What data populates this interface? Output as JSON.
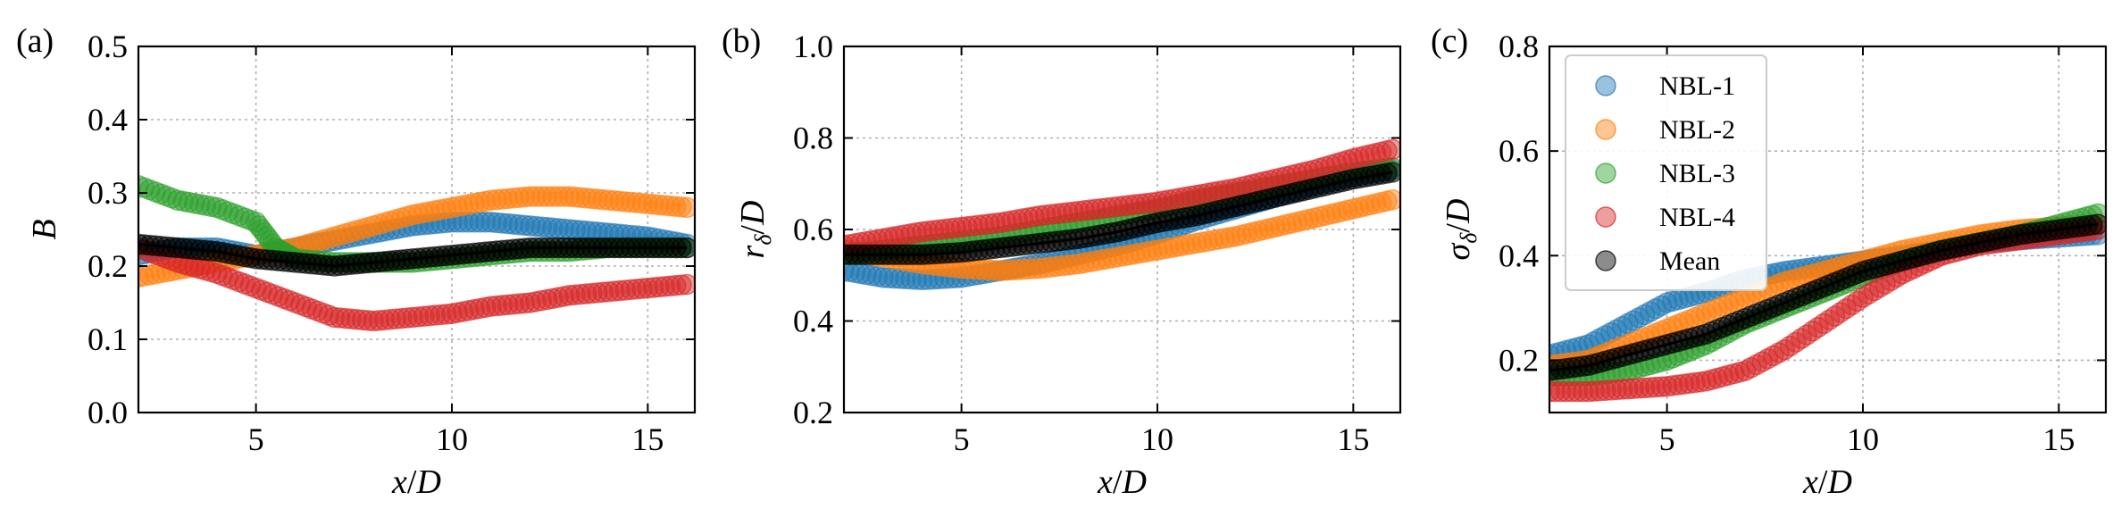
{
  "chart_data": [
    {
      "type": "scatter",
      "panel_label": "(a)",
      "xlabel_html": "x/D",
      "ylabel": "B",
      "xlim": [
        2,
        16.2
      ],
      "ylim": [
        0.0,
        0.5
      ],
      "xticks": [
        5,
        10,
        15
      ],
      "yticks": [
        0.0,
        0.1,
        0.2,
        0.3,
        0.4,
        0.5
      ],
      "ytick_decimals": 1,
      "grid": true,
      "legend": null,
      "series": [
        {
          "name": "NBL-1",
          "color": "#1f77b4",
          "x": [
            2,
            3,
            4,
            5,
            6,
            7,
            8,
            9,
            10,
            11,
            12,
            13,
            14,
            15,
            16
          ],
          "y": [
            0.215,
            0.225,
            0.225,
            0.215,
            0.225,
            0.235,
            0.245,
            0.255,
            0.26,
            0.26,
            0.255,
            0.25,
            0.245,
            0.24,
            0.23
          ]
        },
        {
          "name": "NBL-2",
          "color": "#ff7f0e",
          "x": [
            2,
            3,
            4,
            5,
            6,
            7,
            8,
            9,
            10,
            11,
            12,
            13,
            14,
            15,
            16
          ],
          "y": [
            0.185,
            0.195,
            0.205,
            0.215,
            0.225,
            0.24,
            0.255,
            0.27,
            0.28,
            0.29,
            0.295,
            0.295,
            0.29,
            0.285,
            0.28
          ]
        },
        {
          "name": "NBL-3",
          "color": "#2ca02c",
          "x": [
            2,
            3,
            4,
            5,
            5.5,
            6,
            7,
            8,
            9,
            10,
            11,
            12,
            13,
            14,
            15,
            16
          ],
          "y": [
            0.31,
            0.29,
            0.28,
            0.26,
            0.225,
            0.21,
            0.205,
            0.205,
            0.205,
            0.21,
            0.215,
            0.22,
            0.22,
            0.225,
            0.225,
            0.225
          ]
        },
        {
          "name": "NBL-4",
          "color": "#d62728",
          "x": [
            2,
            3,
            4,
            5,
            6,
            7,
            8,
            9,
            10,
            11,
            12,
            13,
            14,
            15,
            16
          ],
          "y": [
            0.225,
            0.205,
            0.19,
            0.17,
            0.15,
            0.13,
            0.125,
            0.13,
            0.135,
            0.145,
            0.15,
            0.16,
            0.165,
            0.17,
            0.175
          ]
        },
        {
          "name": "Mean",
          "color": "#000000",
          "x": [
            2,
            3,
            4,
            5,
            6,
            7,
            8,
            9,
            10,
            11,
            12,
            13,
            14,
            15,
            16
          ],
          "y": [
            0.23,
            0.225,
            0.22,
            0.21,
            0.205,
            0.2,
            0.205,
            0.21,
            0.215,
            0.22,
            0.225,
            0.225,
            0.225,
            0.225,
            0.225
          ]
        }
      ]
    },
    {
      "type": "scatter",
      "panel_label": "(b)",
      "xlabel_html": "x/D",
      "ylabel": "rδ/D",
      "xlim": [
        2,
        16.2
      ],
      "ylim": [
        0.2,
        1.0
      ],
      "xticks": [
        5,
        10,
        15
      ],
      "yticks": [
        0.2,
        0.4,
        0.6,
        0.8,
        1.0
      ],
      "ytick_decimals": 1,
      "grid": true,
      "legend": null,
      "series": [
        {
          "name": "NBL-1",
          "color": "#1f77b4",
          "x": [
            2,
            3,
            4,
            5,
            6,
            7,
            8,
            9,
            10,
            11,
            12,
            13,
            14,
            15,
            16
          ],
          "y": [
            0.51,
            0.495,
            0.49,
            0.495,
            0.51,
            0.525,
            0.545,
            0.565,
            0.59,
            0.62,
            0.645,
            0.67,
            0.695,
            0.715,
            0.73
          ]
        },
        {
          "name": "NBL-2",
          "color": "#ff7f0e",
          "x": [
            2,
            3,
            4,
            5,
            6,
            7,
            8,
            9,
            10,
            11,
            12,
            13,
            14,
            15,
            16
          ],
          "y": [
            0.555,
            0.54,
            0.525,
            0.515,
            0.51,
            0.515,
            0.525,
            0.54,
            0.555,
            0.57,
            0.585,
            0.605,
            0.625,
            0.645,
            0.665
          ]
        },
        {
          "name": "NBL-3",
          "color": "#2ca02c",
          "x": [
            2,
            3,
            4,
            5,
            6,
            7,
            8,
            9,
            10,
            11,
            12,
            13,
            14,
            15,
            16
          ],
          "y": [
            0.545,
            0.555,
            0.565,
            0.575,
            0.585,
            0.6,
            0.615,
            0.63,
            0.645,
            0.665,
            0.68,
            0.695,
            0.71,
            0.725,
            0.735
          ]
        },
        {
          "name": "NBL-4",
          "color": "#d62728",
          "x": [
            2,
            3,
            4,
            5,
            6,
            7,
            8,
            9,
            10,
            11,
            12,
            13,
            14,
            15,
            16
          ],
          "y": [
            0.565,
            0.58,
            0.595,
            0.605,
            0.615,
            0.63,
            0.64,
            0.65,
            0.66,
            0.675,
            0.69,
            0.71,
            0.73,
            0.755,
            0.775
          ]
        },
        {
          "name": "Mean",
          "color": "#000000",
          "x": [
            2,
            3,
            4,
            5,
            6,
            7,
            8,
            9,
            10,
            11,
            12,
            13,
            14,
            15,
            16
          ],
          "y": [
            0.545,
            0.545,
            0.545,
            0.55,
            0.56,
            0.57,
            0.58,
            0.595,
            0.615,
            0.63,
            0.65,
            0.67,
            0.69,
            0.71,
            0.725
          ]
        }
      ]
    },
    {
      "type": "scatter",
      "panel_label": "(c)",
      "xlabel_html": "x/D",
      "ylabel": "σδ/D",
      "xlim": [
        2,
        16.2
      ],
      "ylim": [
        0.1,
        0.8
      ],
      "xticks": [
        5,
        10,
        15
      ],
      "yticks": [
        0.2,
        0.4,
        0.6,
        0.8
      ],
      "ytick_decimals": 1,
      "grid": true,
      "legend": "top-left",
      "series": [
        {
          "name": "NBL-1",
          "color": "#1f77b4",
          "x": [
            2,
            3,
            4,
            5,
            6,
            7,
            8,
            9,
            10,
            11,
            12,
            13,
            14,
            15,
            16
          ],
          "y": [
            0.21,
            0.23,
            0.27,
            0.31,
            0.33,
            0.355,
            0.37,
            0.38,
            0.39,
            0.4,
            0.41,
            0.425,
            0.43,
            0.435,
            0.44
          ]
        },
        {
          "name": "NBL-2",
          "color": "#ff7f0e",
          "x": [
            2,
            3,
            4,
            5,
            6,
            7,
            8,
            9,
            10,
            11,
            12,
            13,
            14,
            15,
            16
          ],
          "y": [
            0.19,
            0.2,
            0.23,
            0.26,
            0.29,
            0.32,
            0.35,
            0.37,
            0.39,
            0.41,
            0.425,
            0.44,
            0.45,
            0.455,
            0.46
          ]
        },
        {
          "name": "NBL-3",
          "color": "#2ca02c",
          "x": [
            2,
            3,
            4,
            5,
            6,
            7,
            8,
            9,
            10,
            11,
            12,
            13,
            14,
            15,
            16
          ],
          "y": [
            0.17,
            0.17,
            0.18,
            0.2,
            0.23,
            0.27,
            0.3,
            0.33,
            0.36,
            0.39,
            0.41,
            0.425,
            0.44,
            0.46,
            0.48
          ]
        },
        {
          "name": "NBL-4",
          "color": "#d62728",
          "x": [
            2,
            3,
            4,
            5,
            6,
            7,
            8,
            9,
            10,
            11,
            12,
            13,
            14,
            15,
            16
          ],
          "y": [
            0.14,
            0.14,
            0.145,
            0.15,
            0.16,
            0.18,
            0.22,
            0.27,
            0.32,
            0.365,
            0.4,
            0.42,
            0.43,
            0.44,
            0.45
          ]
        },
        {
          "name": "Mean",
          "color": "#000000",
          "x": [
            2,
            3,
            4,
            5,
            6,
            7,
            8,
            9,
            10,
            11,
            12,
            13,
            14,
            15,
            16
          ],
          "y": [
            0.18,
            0.19,
            0.21,
            0.23,
            0.25,
            0.28,
            0.31,
            0.34,
            0.37,
            0.39,
            0.41,
            0.425,
            0.44,
            0.45,
            0.46
          ]
        }
      ]
    }
  ]
}
